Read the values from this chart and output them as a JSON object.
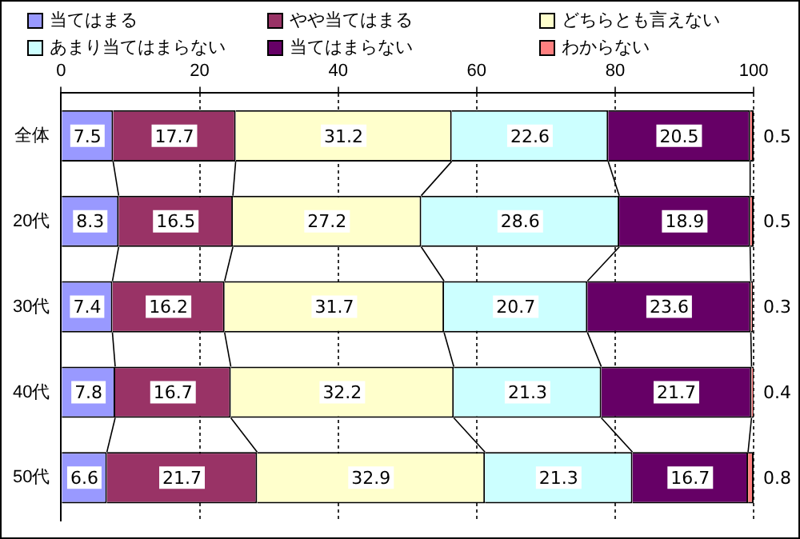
{
  "chart_data": {
    "type": "bar",
    "orientation": "horizontal",
    "stacked": true,
    "categories": [
      "全体",
      "20代",
      "30代",
      "40代",
      "50代"
    ],
    "series": [
      {
        "name": "当てはまる",
        "color": "#9999ff",
        "values": [
          7.5,
          8.3,
          7.4,
          7.8,
          6.6
        ]
      },
      {
        "name": "やや当てはまる",
        "color": "#993366",
        "values": [
          17.7,
          16.5,
          16.2,
          16.7,
          21.7
        ]
      },
      {
        "name": "どちらとも言えない",
        "color": "#ffffcc",
        "values": [
          31.2,
          27.2,
          31.7,
          32.2,
          32.9
        ]
      },
      {
        "name": "あまり当てはまらない",
        "color": "#ccffff",
        "values": [
          22.6,
          28.6,
          20.7,
          21.3,
          21.3
        ]
      },
      {
        "name": "当てはまらない",
        "color": "#660066",
        "values": [
          20.5,
          18.9,
          23.6,
          21.7,
          16.7
        ]
      },
      {
        "name": "わからない",
        "color": "#ff8080",
        "values": [
          0.5,
          0.5,
          0.3,
          0.4,
          0.8
        ]
      }
    ],
    "xlim": [
      0,
      100
    ],
    "xticks": [
      0,
      20,
      40,
      60,
      80,
      100
    ],
    "grid": "x",
    "legend": "top",
    "data_labels": true
  }
}
